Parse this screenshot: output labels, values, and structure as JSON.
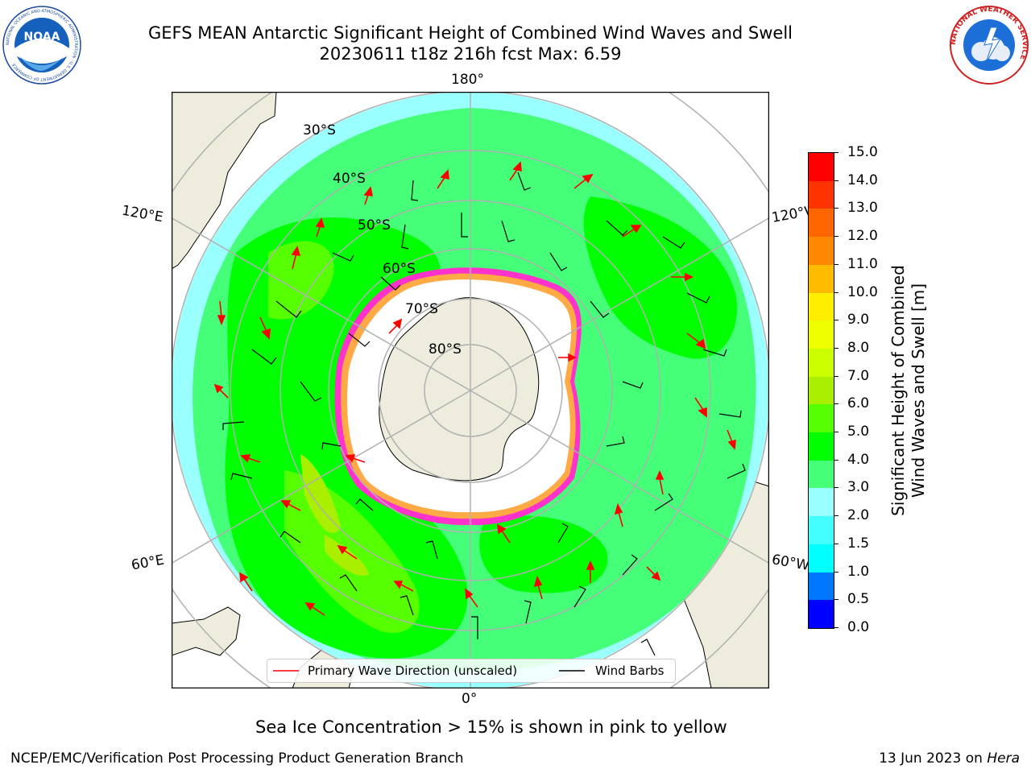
{
  "header": {
    "title_line1": "GEFS MEAN Antarctic Significant Height of Combined Wind Waves and Swell",
    "title_line2": "20230611 t18z 216h fcst   Max: 6.59"
  },
  "logos": {
    "noaa_text": "NOAA",
    "noaa_ring_text": "NATIONAL OCEANIC AND ATMOSPHERIC ADMINISTRATION · U.S. DEPARTMENT OF COMMERCE",
    "nws_ring_text": "NATIONAL WEATHER SERVICE"
  },
  "map": {
    "longitude_labels": {
      "top": "180°",
      "bottom": "0°",
      "left_upper": "120°E",
      "left_lower": "60°E",
      "right_upper": "120°W",
      "right_lower": "60°W"
    },
    "latitude_labels": [
      "30°S",
      "40°S",
      "50°S",
      "60°S",
      "70°S",
      "80°S"
    ],
    "colors": {
      "land": "#eeecdc",
      "ice_pink": "#ff33cc",
      "ice_orange": "#ffaa44",
      "barb": "#000000",
      "arrow": "#ff0000",
      "grid": "#b0b0b0"
    }
  },
  "legend": {
    "wave_direction": "Primary Wave Direction (unscaled)",
    "wind_barbs": "Wind Barbs"
  },
  "colorbar": {
    "label_line1": "Significant Height of Combined",
    "label_line2": "Wind Waves and Swell [m]",
    "ticks": [
      "0.0",
      "0.5",
      "1.0",
      "1.5",
      "2.0",
      "3.0",
      "4.0",
      "5.0",
      "6.0",
      "7.0",
      "8.0",
      "9.0",
      "10.0",
      "11.0",
      "12.0",
      "13.0",
      "14.0",
      "15.0"
    ],
    "colors": [
      "#0000ff",
      "#0077ff",
      "#00ffff",
      "#44ffff",
      "#99ffff",
      "#44ff77",
      "#00ff00",
      "#55ff00",
      "#aaee00",
      "#ccff00",
      "#eeff00",
      "#ffee00",
      "#ffbb00",
      "#ff8800",
      "#ff6600",
      "#ff3300",
      "#ff0000"
    ]
  },
  "notes": {
    "sea_ice": "Sea Ice Concentration > 15% is shown in pink to yellow"
  },
  "footer": {
    "left": "NCEP/EMC/Verification Post Processing Product Generation Branch",
    "right_date": "13 Jun 2023 on ",
    "right_host": "Hera"
  }
}
